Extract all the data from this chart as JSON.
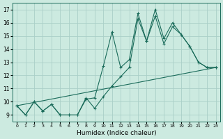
{
  "xlabel": "Humidex (Indice chaleur)",
  "bg_color": "#cceae0",
  "line_color": "#1a6b5a",
  "grid_color": "#aacfc8",
  "xlim": [
    -0.5,
    23.5
  ],
  "ylim": [
    8.5,
    17.5
  ],
  "xticks": [
    0,
    1,
    2,
    3,
    4,
    5,
    6,
    7,
    8,
    9,
    10,
    11,
    12,
    13,
    14,
    15,
    16,
    17,
    18,
    19,
    20,
    21,
    22,
    23
  ],
  "yticks": [
    9,
    10,
    11,
    12,
    13,
    14,
    15,
    16,
    17
  ],
  "line1_x": [
    0,
    1,
    2,
    3,
    4,
    5,
    6,
    7,
    8,
    9,
    10,
    11,
    12,
    13,
    14,
    15,
    16,
    17,
    18,
    19,
    20,
    21,
    22,
    23
  ],
  "line1_y": [
    9.7,
    9.0,
    10.0,
    9.3,
    9.8,
    9.0,
    9.0,
    9.0,
    10.3,
    9.5,
    10.4,
    11.2,
    11.9,
    12.6,
    16.3,
    14.6,
    16.5,
    14.4,
    15.7,
    15.1,
    14.2,
    13.0,
    12.6,
    12.6
  ],
  "line2_x": [
    0,
    1,
    2,
    3,
    4,
    5,
    6,
    7,
    8,
    9,
    10,
    11,
    12,
    13,
    14,
    15,
    16,
    17,
    18,
    19,
    20,
    21,
    22,
    23
  ],
  "line2_y": [
    9.7,
    9.0,
    10.0,
    9.3,
    9.8,
    9.0,
    9.0,
    9.0,
    10.2,
    10.3,
    12.7,
    15.3,
    12.6,
    13.2,
    16.7,
    14.6,
    17.0,
    14.8,
    16.0,
    15.1,
    14.2,
    13.0,
    12.6,
    12.6
  ],
  "line3_x": [
    0,
    23
  ],
  "line3_y": [
    9.7,
    12.6
  ],
  "marker": "+",
  "markersize": 3,
  "markeredgewidth": 0.8,
  "linewidth": 0.8
}
